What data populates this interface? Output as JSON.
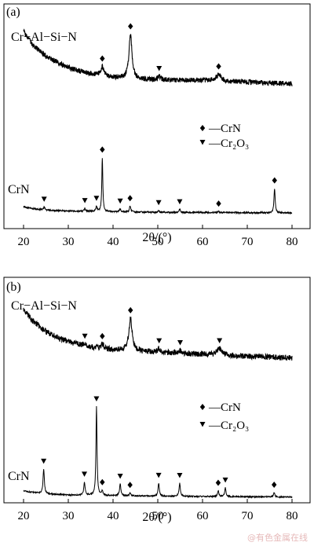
{
  "chart_data": [
    {
      "type": "line",
      "panel_label": "(a)",
      "xlim": [
        20,
        80
      ],
      "x_ticks": [
        20,
        30,
        40,
        50,
        60,
        70,
        80
      ],
      "xlabel": "2θ/(°)",
      "legend": [
        {
          "marker": "diamond",
          "text": "—CrN"
        },
        {
          "marker": "triangle-down",
          "text": "—Cr₂O₃"
        }
      ],
      "series": [
        {
          "name": "Cr−Al−Si−N",
          "background": [
            [
              20,
              0.8
            ],
            [
              22,
              0.66
            ],
            [
              25,
              0.54
            ],
            [
              28,
              0.46
            ],
            [
              31,
              0.4
            ],
            [
              34,
              0.36
            ],
            [
              37,
              0.33
            ],
            [
              40,
              0.31
            ],
            [
              45,
              0.29
            ],
            [
              50,
              0.28
            ],
            [
              55,
              0.28
            ],
            [
              60,
              0.28
            ],
            [
              65,
              0.27
            ],
            [
              70,
              0.26
            ],
            [
              75,
              0.25
            ],
            [
              80,
              0.24
            ]
          ],
          "peaks": [
            [
              37.6,
              0.1,
              0.45
            ],
            [
              43.9,
              0.48,
              0.4
            ],
            [
              50.3,
              0.04,
              0.4
            ],
            [
              63.6,
              0.07,
              0.6
            ]
          ],
          "markers": [
            {
              "x": 37.6,
              "type": "diamond"
            },
            {
              "x": 43.9,
              "type": "diamond"
            },
            {
              "x": 50.3,
              "type": "triangle-down"
            },
            {
              "x": 63.6,
              "type": "diamond"
            }
          ]
        },
        {
          "name": "CrN",
          "background": [
            [
              20,
              0.08
            ],
            [
              22,
              0.06
            ],
            [
              25,
              0.045
            ],
            [
              30,
              0.035
            ],
            [
              40,
              0.028
            ],
            [
              50,
              0.022
            ],
            [
              60,
              0.02
            ],
            [
              70,
              0.018
            ],
            [
              80,
              0.016
            ]
          ],
          "peaks": [
            [
              24.6,
              0.03,
              0.18
            ],
            [
              33.7,
              0.03,
              0.18
            ],
            [
              36.3,
              0.05,
              0.18
            ],
            [
              37.6,
              0.55,
              0.13
            ],
            [
              41.6,
              0.03,
              0.18
            ],
            [
              43.8,
              0.06,
              0.18
            ],
            [
              50.2,
              0.02,
              0.18
            ],
            [
              54.9,
              0.03,
              0.18
            ],
            [
              63.6,
              0.012,
              0.18
            ],
            [
              76.1,
              0.25,
              0.16
            ]
          ],
          "markers": [
            {
              "x": 24.6,
              "type": "triangle-down"
            },
            {
              "x": 33.7,
              "type": "triangle-down"
            },
            {
              "x": 36.3,
              "type": "triangle-down"
            },
            {
              "x": 37.6,
              "type": "diamond"
            },
            {
              "x": 41.6,
              "type": "triangle-down"
            },
            {
              "x": 43.8,
              "type": "diamond"
            },
            {
              "x": 50.2,
              "type": "triangle-down"
            },
            {
              "x": 54.9,
              "type": "triangle-down"
            },
            {
              "x": 63.6,
              "type": "diamond"
            },
            {
              "x": 76.1,
              "type": "diamond"
            }
          ]
        }
      ]
    },
    {
      "type": "line",
      "panel_label": "(b)",
      "xlim": [
        20,
        80
      ],
      "x_ticks": [
        20,
        30,
        40,
        50,
        60,
        70,
        80
      ],
      "xlabel": "2θ/(°)",
      "legend": [
        {
          "marker": "diamond",
          "text": "—CrN"
        },
        {
          "marker": "triangle-down",
          "text": "—Cr₂O₃"
        }
      ],
      "series": [
        {
          "name": "Cr−Al−Si−N",
          "background": [
            [
              20,
              0.78
            ],
            [
              22,
              0.66
            ],
            [
              25,
              0.54
            ],
            [
              28,
              0.47
            ],
            [
              31,
              0.42
            ],
            [
              34,
              0.385
            ],
            [
              37,
              0.36
            ],
            [
              40,
              0.345
            ],
            [
              45,
              0.33
            ],
            [
              50,
              0.32
            ],
            [
              55,
              0.31
            ],
            [
              60,
              0.3
            ],
            [
              65,
              0.29
            ],
            [
              70,
              0.28
            ],
            [
              75,
              0.27
            ],
            [
              80,
              0.26
            ]
          ],
          "peaks": [
            [
              33.7,
              0.02,
              0.4
            ],
            [
              37.6,
              0.05,
              0.45
            ],
            [
              43.9,
              0.35,
              0.45
            ],
            [
              50.3,
              0.04,
              0.4
            ],
            [
              55.0,
              0.03,
              0.5
            ],
            [
              63.8,
              0.07,
              0.6
            ]
          ],
          "markers": [
            {
              "x": 33.7,
              "type": "triangle-down"
            },
            {
              "x": 37.6,
              "type": "diamond"
            },
            {
              "x": 43.9,
              "type": "diamond"
            },
            {
              "x": 50.3,
              "type": "triangle-down"
            },
            {
              "x": 55.0,
              "type": "triangle-down"
            },
            {
              "x": 63.8,
              "type": "triangle-down"
            }
          ]
        },
        {
          "name": "CrN",
          "background": [
            [
              20,
              0.06
            ],
            [
              22,
              0.05
            ],
            [
              25,
              0.04
            ],
            [
              30,
              0.032
            ],
            [
              40,
              0.028
            ],
            [
              50,
              0.024
            ],
            [
              60,
              0.022
            ],
            [
              70,
              0.02
            ],
            [
              80,
              0.018
            ]
          ],
          "peaks": [
            [
              24.5,
              0.17,
              0.17
            ],
            [
              33.6,
              0.09,
              0.17
            ],
            [
              36.3,
              0.61,
              0.14
            ],
            [
              37.6,
              0.03,
              0.17
            ],
            [
              41.6,
              0.08,
              0.17
            ],
            [
              43.8,
              0.02,
              0.17
            ],
            [
              50.2,
              0.09,
              0.17
            ],
            [
              54.9,
              0.09,
              0.17
            ],
            [
              63.5,
              0.04,
              0.17
            ],
            [
              65.1,
              0.06,
              0.17
            ],
            [
              76.0,
              0.03,
              0.17
            ]
          ],
          "markers": [
            {
              "x": 24.5,
              "type": "triangle-down"
            },
            {
              "x": 33.6,
              "type": "triangle-down"
            },
            {
              "x": 36.3,
              "type": "triangle-down"
            },
            {
              "x": 37.6,
              "type": "diamond"
            },
            {
              "x": 41.6,
              "type": "triangle-down"
            },
            {
              "x": 43.8,
              "type": "diamond"
            },
            {
              "x": 50.2,
              "type": "triangle-down"
            },
            {
              "x": 54.9,
              "type": "triangle-down"
            },
            {
              "x": 63.5,
              "type": "diamond"
            },
            {
              "x": 65.1,
              "type": "triangle-down"
            },
            {
              "x": 76.0,
              "type": "diamond"
            }
          ]
        }
      ]
    }
  ],
  "watermark": "@有色金属在线"
}
